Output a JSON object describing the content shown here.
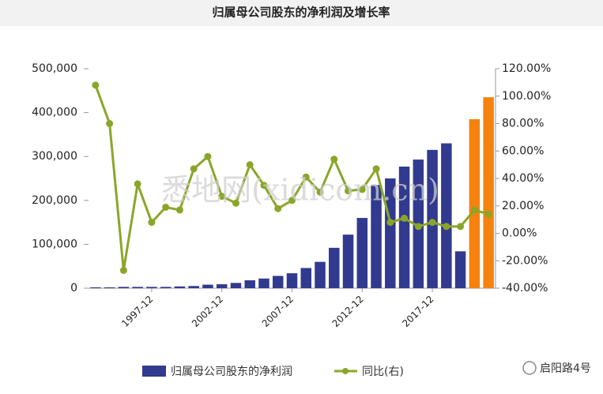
{
  "chart_data": {
    "type": "bar_line",
    "title": "归属母公司股东的净利润及增长率",
    "watermark": "悉地网(xidicom.cn)",
    "footer_text": "启阳路4号",
    "categories": [
      null,
      null,
      null,
      null,
      "1997-12",
      null,
      null,
      null,
      null,
      "2002-12",
      null,
      null,
      null,
      null,
      "2007-12",
      null,
      null,
      null,
      null,
      "2012-12",
      null,
      null,
      null,
      null,
      "2017-12",
      null,
      null,
      null,
      null
    ],
    "series": [
      {
        "name": "归属母公司股东的净利润",
        "color": "#313a8f",
        "colors": [
          "#313a8f",
          "#313a8f",
          "#313a8f",
          "#313a8f",
          "#313a8f",
          "#313a8f",
          "#313a8f",
          "#313a8f",
          "#313a8f",
          "#313a8f",
          "#313a8f",
          "#313a8f",
          "#313a8f",
          "#313a8f",
          "#313a8f",
          "#313a8f",
          "#313a8f",
          "#313a8f",
          "#313a8f",
          "#313a8f",
          "#313a8f",
          "#313a8f",
          "#313a8f",
          "#313a8f",
          "#313a8f",
          "#313a8f",
          "#313a8f",
          "#f5820e",
          "#f5820e"
        ],
        "values": [
          2000,
          2000,
          3000,
          3000,
          3000,
          3000,
          4000,
          5000,
          8000,
          9000,
          12000,
          18000,
          22000,
          28000,
          34000,
          46000,
          60000,
          92000,
          122000,
          160000,
          235000,
          250000,
          277000,
          293000,
          315000,
          330000,
          84000,
          385000,
          435000
        ]
      },
      {
        "name": "同比(右)",
        "color": "#8aa62a",
        "axis": "y2",
        "values": [
          108,
          80,
          -27,
          36,
          8,
          19,
          17,
          47,
          56,
          27,
          22,
          50,
          35,
          18,
          24,
          41,
          30,
          54,
          31,
          32,
          47,
          8,
          11,
          5,
          8,
          5,
          5,
          17,
          14
        ]
      }
    ],
    "ylim": [
      0,
      500000
    ],
    "yticks": [
      0,
      {
        "value": 100000,
        "label": "100,000"
      },
      {
        "value": 200000,
        "label": "200,000"
      },
      {
        "value": 300000,
        "label": "300,000"
      },
      {
        "value": 400000,
        "label": "400,000"
      },
      {
        "value": 500000,
        "label": "500,000"
      }
    ],
    "y2lim": [
      -40,
      120
    ],
    "y2ticks": [
      {
        "value": -40,
        "label": "-40.00%"
      },
      {
        "value": -20,
        "label": "-20.00%"
      },
      {
        "value": 0,
        "label": "0.00%"
      },
      {
        "value": 20,
        "label": "20.00%"
      },
      {
        "value": 40,
        "label": "40.00%"
      },
      {
        "value": 60,
        "label": "60.00%"
      },
      {
        "value": 80,
        "label": "80.00%"
      },
      {
        "value": 100,
        "label": "100.00%"
      },
      {
        "value": 120,
        "label": "120.00%"
      }
    ]
  }
}
